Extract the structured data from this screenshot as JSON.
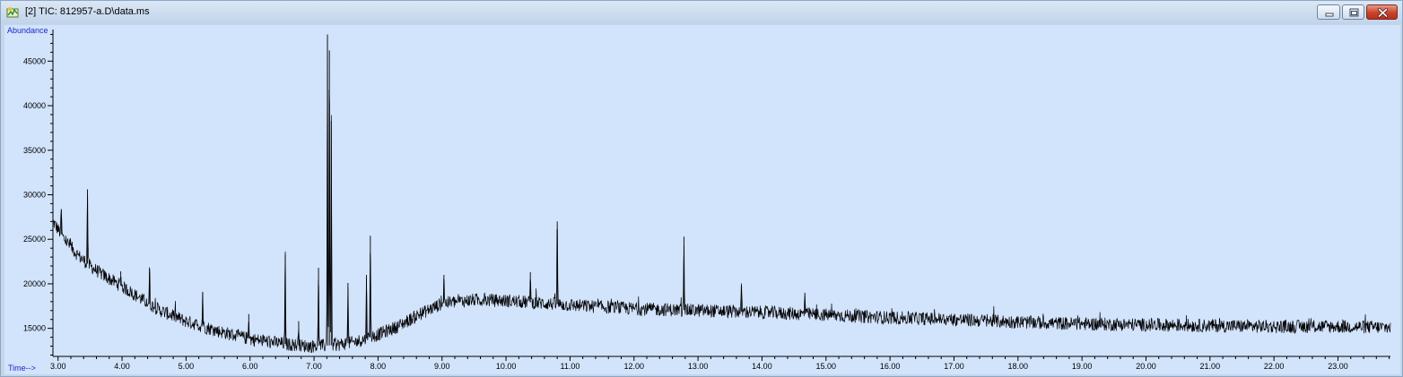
{
  "window": {
    "title": "[2] TIC: 812957-a.D\\data.ms",
    "controls": [
      "minimize",
      "maximize",
      "close"
    ],
    "icon": "chromatogram-app-icon"
  },
  "chart_data": {
    "type": "line",
    "ylabel": "Abundance",
    "xlabel": "Time-->",
    "xlim": [
      2.92,
      23.82
    ],
    "ylim": [
      11850,
      48550
    ],
    "x_ticks": [
      "3.00",
      "4.00",
      "5.00",
      "6.00",
      "7.00",
      "8.00",
      "9.00",
      "10.00",
      "11.00",
      "12.00",
      "13.00",
      "14.00",
      "15.00",
      "16.00",
      "17.00",
      "18.00",
      "19.00",
      "20.00",
      "21.00",
      "22.00",
      "23.00"
    ],
    "y_ticks": [
      "15000",
      "20000",
      "25000",
      "30000",
      "35000",
      "40000",
      "45000"
    ],
    "grid": false,
    "background": "#d2e3fc",
    "line_color": "#000000",
    "series": [
      {
        "x": [
          2.92,
          3.1,
          3.3,
          3.5,
          3.7,
          4.0,
          4.3,
          4.6,
          5.0,
          5.5,
          6.0,
          6.5,
          6.8,
          7.0,
          7.3,
          7.6,
          7.8,
          8.0,
          8.3,
          8.6,
          9.0,
          9.5,
          10.0,
          11.0,
          12.0,
          13.0,
          14.0,
          15.0,
          16.0,
          17.0,
          18.0,
          19.0,
          20.0,
          21.0,
          22.0,
          23.0,
          23.82
        ],
        "y": [
          27000,
          25000,
          23300,
          22000,
          21000,
          19700,
          18300,
          17000,
          15800,
          14700,
          13800,
          13300,
          13050,
          13000,
          13100,
          13400,
          13800,
          14300,
          15200,
          16400,
          17800,
          18200,
          18100,
          17600,
          17200,
          17000,
          16800,
          16500,
          16200,
          16000,
          15700,
          15500,
          15400,
          15300,
          15200,
          15200,
          15100
        ]
      }
    ],
    "peaks": [
      {
        "x": 3.05,
        "y": 28400
      },
      {
        "x": 3.46,
        "y": 30600
      },
      {
        "x": 3.98,
        "y": 21400
      },
      {
        "x": 4.43,
        "y": 21700
      },
      {
        "x": 5.26,
        "y": 19100
      },
      {
        "x": 5.98,
        "y": 16600
      },
      {
        "x": 6.55,
        "y": 23300
      },
      {
        "x": 6.76,
        "y": 15800
      },
      {
        "x": 7.07,
        "y": 21800
      },
      {
        "x": 7.21,
        "y": 48000
      },
      {
        "x": 7.24,
        "y": 46200
      },
      {
        "x": 7.27,
        "y": 38300
      },
      {
        "x": 7.53,
        "y": 20100
      },
      {
        "x": 7.82,
        "y": 21000
      },
      {
        "x": 7.88,
        "y": 25400
      },
      {
        "x": 9.03,
        "y": 21000
      },
      {
        "x": 10.38,
        "y": 21300
      },
      {
        "x": 10.8,
        "y": 27000
      },
      {
        "x": 12.78,
        "y": 25300
      },
      {
        "x": 13.68,
        "y": 19800
      },
      {
        "x": 14.67,
        "y": 19000
      }
    ]
  }
}
